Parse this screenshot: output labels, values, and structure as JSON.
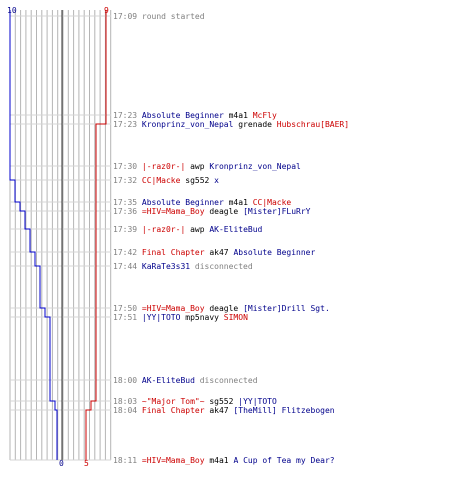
{
  "scores": {
    "blue_top": "10",
    "red_top": "9",
    "blue_bottom": "0",
    "red_bottom": "5"
  },
  "colors": {
    "blue": "#00008b",
    "red": "#cc0000",
    "grid": "#b0b0b0",
    "time": "#808080"
  },
  "events": [
    {
      "time": "17:09",
      "parts": [
        {
          "t": "round started",
          "c": "msg"
        }
      ]
    },
    {
      "time": "17:23",
      "parts": [
        {
          "t": "Absolute Beginner",
          "c": "blue"
        },
        {
          "t": " m4a1 ",
          "c": "blk"
        },
        {
          "t": "McFly",
          "c": "red"
        }
      ]
    },
    {
      "time": "17:23",
      "parts": [
        {
          "t": "Kronprinz_von_Nepal",
          "c": "blue"
        },
        {
          "t": " grenade ",
          "c": "blk"
        },
        {
          "t": "Hubschrau[BAER]",
          "c": "red"
        }
      ]
    },
    {
      "time": "17:30",
      "parts": [
        {
          "t": "|-raz0r-|",
          "c": "red"
        },
        {
          "t": " awp ",
          "c": "blk"
        },
        {
          "t": "Kronprinz_von_Nepal",
          "c": "blue"
        }
      ]
    },
    {
      "time": "17:32",
      "parts": [
        {
          "t": "CC|Macke",
          "c": "red"
        },
        {
          "t": " sg552 ",
          "c": "blk"
        },
        {
          "t": "x",
          "c": "blue"
        }
      ]
    },
    {
      "time": "17:35",
      "parts": [
        {
          "t": "Absolute Beginner",
          "c": "blue"
        },
        {
          "t": " m4a1 ",
          "c": "blk"
        },
        {
          "t": "CC|Macke",
          "c": "red"
        }
      ]
    },
    {
      "time": "17:36",
      "parts": [
        {
          "t": "=HIV=Mama_Boy",
          "c": "red"
        },
        {
          "t": " deagle ",
          "c": "blk"
        },
        {
          "t": "[Mister]FLuRrY",
          "c": "blue"
        }
      ]
    },
    {
      "time": "17:39",
      "parts": [
        {
          "t": "|-raz0r-|",
          "c": "red"
        },
        {
          "t": " awp ",
          "c": "blk"
        },
        {
          "t": "AK-EliteBud",
          "c": "blue"
        }
      ]
    },
    {
      "time": "17:42",
      "parts": [
        {
          "t": "Final Chapter",
          "c": "red"
        },
        {
          "t": " ak47 ",
          "c": "blk"
        },
        {
          "t": "Absolute Beginner",
          "c": "blue"
        }
      ]
    },
    {
      "time": "17:44",
      "parts": [
        {
          "t": "KaRaTe3s31",
          "c": "blue"
        },
        {
          "t": " disconnected",
          "c": "msg"
        }
      ]
    },
    {
      "time": "17:50",
      "parts": [
        {
          "t": "=HIV=Mama_Boy",
          "c": "red"
        },
        {
          "t": " deagle ",
          "c": "blk"
        },
        {
          "t": "[Mister]Drill Sgt.",
          "c": "blue"
        }
      ]
    },
    {
      "time": "17:51",
      "parts": [
        {
          "t": "|YY|TOTO",
          "c": "blue"
        },
        {
          "t": " mp5navy ",
          "c": "blk"
        },
        {
          "t": "SIMON",
          "c": "red"
        }
      ]
    },
    {
      "time": "18:00",
      "parts": [
        {
          "t": "AK-EliteBud",
          "c": "blue"
        },
        {
          "t": " disconnected",
          "c": "msg"
        }
      ]
    },
    {
      "time": "18:03",
      "parts": [
        {
          "t": "~\"Major Tom\"~",
          "c": "red"
        },
        {
          "t": " sg552 ",
          "c": "blk"
        },
        {
          "t": "|YY|TOTO",
          "c": "blue"
        }
      ]
    },
    {
      "time": "18:04",
      "parts": [
        {
          "t": "Final Chapter",
          "c": "red"
        },
        {
          "t": " ak47 ",
          "c": "blk"
        },
        {
          "t": "[TheMill] Flitzebogen",
          "c": "blue"
        }
      ]
    },
    {
      "time": "18:11",
      "parts": [
        {
          "t": "=HIV=Mama_Boy",
          "c": "red"
        },
        {
          "t": " m4a1 ",
          "c": "blk"
        },
        {
          "t": "A Cup of Tea my Dear?",
          "c": "blue"
        }
      ]
    }
  ]
}
